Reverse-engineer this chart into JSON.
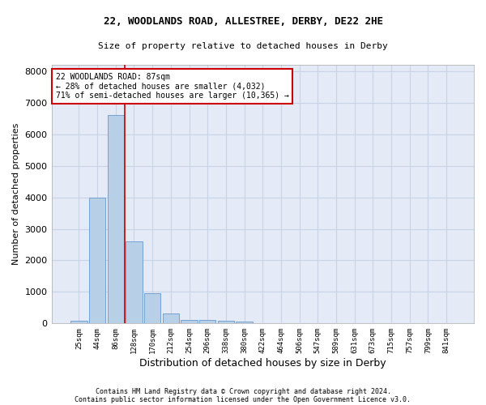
{
  "title1": "22, WOODLANDS ROAD, ALLESTREE, DERBY, DE22 2HE",
  "title2": "Size of property relative to detached houses in Derby",
  "xlabel": "Distribution of detached houses by size in Derby",
  "ylabel": "Number of detached properties",
  "footer1": "Contains HM Land Registry data © Crown copyright and database right 2024.",
  "footer2": "Contains public sector information licensed under the Open Government Licence v3.0.",
  "bin_labels": [
    "25sqm",
    "44sqm",
    "86sqm",
    "128sqm",
    "170sqm",
    "212sqm",
    "254sqm",
    "296sqm",
    "338sqm",
    "380sqm",
    "422sqm",
    "464sqm",
    "506sqm",
    "547sqm",
    "589sqm",
    "631sqm",
    "673sqm",
    "715sqm",
    "757sqm",
    "799sqm",
    "841sqm"
  ],
  "bar_values": [
    75,
    3980,
    6600,
    2600,
    960,
    310,
    120,
    110,
    80,
    50,
    0,
    0,
    0,
    0,
    0,
    0,
    0,
    0,
    0,
    0,
    0
  ],
  "bar_color": "#b8cfe8",
  "bar_edge_color": "#6699cc",
  "grid_color": "#c8d4e4",
  "bg_color": "#e4eaf6",
  "vline_x": 2.5,
  "vline_color": "#cc0000",
  "annotation_text": "22 WOODLANDS ROAD: 87sqm\n← 28% of detached houses are smaller (4,032)\n71% of semi-detached houses are larger (10,365) →",
  "annotation_box_color": "#cc0000",
  "ylim": [
    0,
    8200
  ],
  "yticks": [
    0,
    1000,
    2000,
    3000,
    4000,
    5000,
    6000,
    7000,
    8000
  ]
}
